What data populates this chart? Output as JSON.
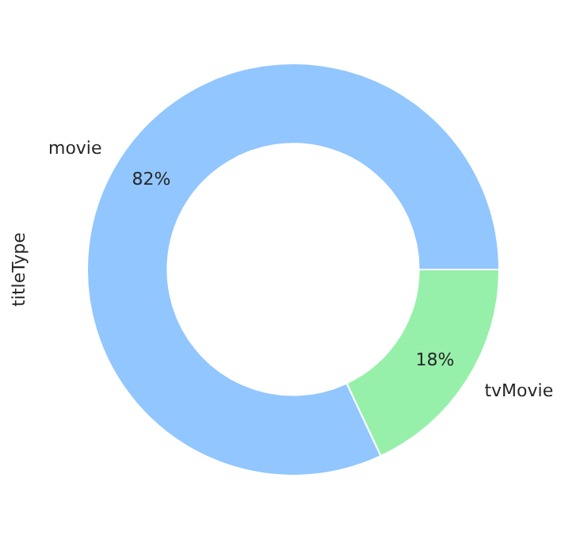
{
  "chart_data": {
    "type": "donut",
    "ylabel": "titleType",
    "categories": [
      "movie",
      "tvMovie"
    ],
    "values": [
      82,
      18
    ],
    "value_labels": [
      "82%",
      "18%"
    ],
    "colors": [
      "#92c6ff",
      "#97f0aa"
    ],
    "legend": false
  }
}
